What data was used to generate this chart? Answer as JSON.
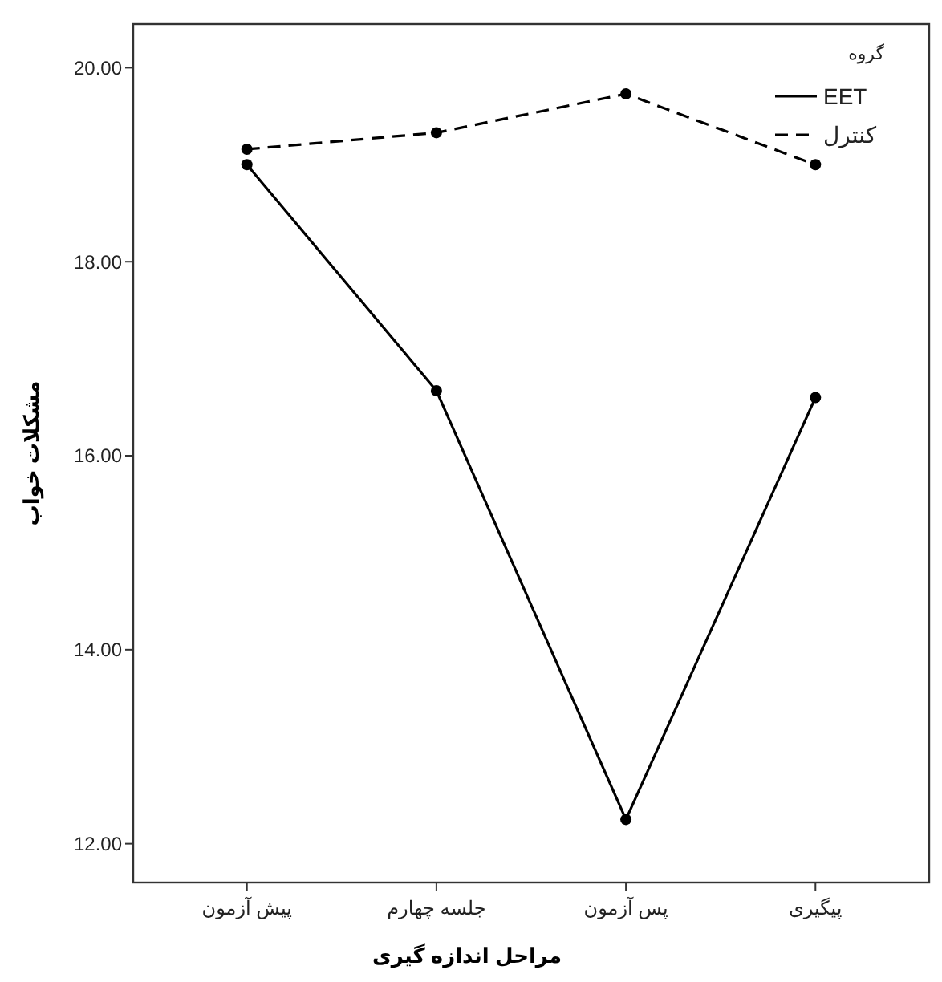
{
  "chart_data": {
    "type": "line",
    "xlabel": "مراحل اندازه گیری",
    "ylabel": "مشکلات خواب",
    "legend_title": "گروه",
    "categories": [
      "پیش آزمون",
      "جلسه چهارم",
      "پس آزمون",
      "پیگیری"
    ],
    "series": [
      {
        "name": "EET",
        "color": "#000000",
        "line_style": "solid",
        "values": [
          19.0,
          16.67,
          12.25,
          16.6
        ]
      },
      {
        "name": "کنترل",
        "color": "#000000",
        "line_style": "dashed",
        "values": [
          19.16,
          19.33,
          19.73,
          19.0
        ]
      }
    ],
    "ylim": [
      11.6,
      20.45
    ],
    "yticks": [
      {
        "value": 12,
        "label": "12.00"
      },
      {
        "value": 14,
        "label": "14.00"
      },
      {
        "value": 16,
        "label": "16.00"
      },
      {
        "value": 18,
        "label": "18.00"
      },
      {
        "value": 20,
        "label": "20.00"
      }
    ],
    "marker": "circle",
    "legend": "top right",
    "grid": false
  }
}
